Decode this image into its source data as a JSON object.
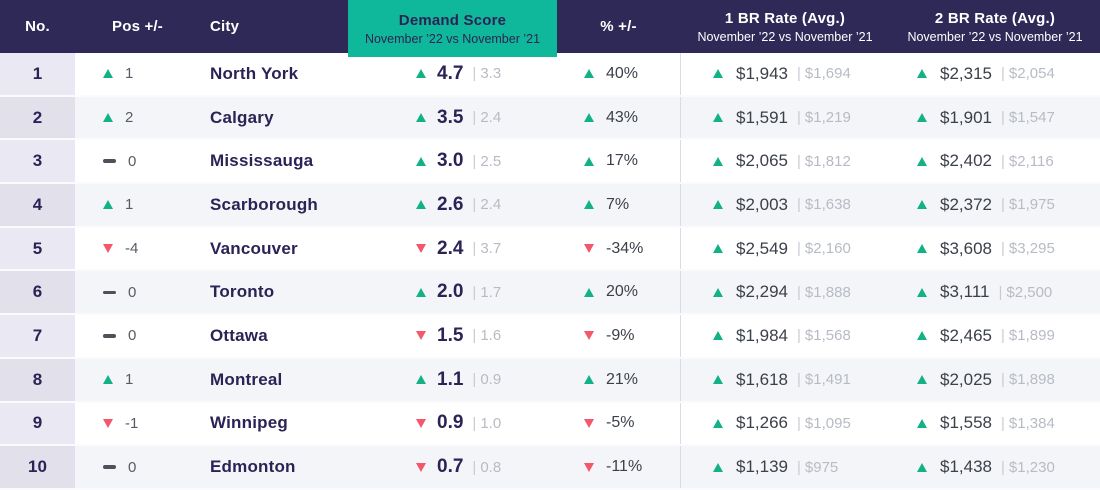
{
  "header": {
    "no": "No.",
    "pos": "Pos +/-",
    "city": "City",
    "demand_title": "Demand Score",
    "demand_sub": "November ’22 vs November ’21",
    "pct": "% +/-",
    "br1_title": "1 BR Rate (Avg.)",
    "br1_sub": "November ’22 vs November ’21",
    "br2_title": "2 BR Rate (Avg.)",
    "br2_sub": "November ’22 vs November ’21"
  },
  "colors": {
    "header_bg": "#2e2957",
    "demand_header_bg": "#10b89b",
    "up_green": "#12b286",
    "down_red": "#f4566a",
    "navy_text": "#2b2355",
    "prev_gray": "#b7bbc4"
  },
  "rows": [
    {
      "no": "1",
      "pos_dir": "up",
      "pos": "1",
      "city": "North York",
      "demand_dir": "up",
      "demand": "4.7",
      "demand_prev": "3.3",
      "pct_dir": "up",
      "pct": "40%",
      "br1_dir": "up",
      "br1": "$1,943",
      "br1_prev": "$1,694",
      "br2_dir": "up",
      "br2": "$2,315",
      "br2_prev": "$2,054"
    },
    {
      "no": "2",
      "pos_dir": "up",
      "pos": "2",
      "city": "Calgary",
      "demand_dir": "up",
      "demand": "3.5",
      "demand_prev": "2.4",
      "pct_dir": "up",
      "pct": "43%",
      "br1_dir": "up",
      "br1": "$1,591",
      "br1_prev": "$1,219",
      "br2_dir": "up",
      "br2": "$1,901",
      "br2_prev": "$1,547"
    },
    {
      "no": "3",
      "pos_dir": "flat",
      "pos": "0",
      "city": "Mississauga",
      "demand_dir": "up",
      "demand": "3.0",
      "demand_prev": "2.5",
      "pct_dir": "up",
      "pct": "17%",
      "br1_dir": "up",
      "br1": "$2,065",
      "br1_prev": "$1,812",
      "br2_dir": "up",
      "br2": "$2,402",
      "br2_prev": "$2,116"
    },
    {
      "no": "4",
      "pos_dir": "up",
      "pos": "1",
      "city": "Scarborough",
      "demand_dir": "up",
      "demand": "2.6",
      "demand_prev": "2.4",
      "pct_dir": "up",
      "pct": "7%",
      "br1_dir": "up",
      "br1": "$2,003",
      "br1_prev": "$1,638",
      "br2_dir": "up",
      "br2": "$2,372",
      "br2_prev": "$1,975"
    },
    {
      "no": "5",
      "pos_dir": "down",
      "pos": "-4",
      "city": "Vancouver",
      "demand_dir": "down",
      "demand": "2.4",
      "demand_prev": "3.7",
      "pct_dir": "down",
      "pct": "-34%",
      "br1_dir": "up",
      "br1": "$2,549",
      "br1_prev": "$2,160",
      "br2_dir": "up",
      "br2": "$3,608",
      "br2_prev": "$3,295"
    },
    {
      "no": "6",
      "pos_dir": "flat",
      "pos": "0",
      "city": "Toronto",
      "demand_dir": "up",
      "demand": "2.0",
      "demand_prev": "1.7",
      "pct_dir": "up",
      "pct": "20%",
      "br1_dir": "up",
      "br1": "$2,294",
      "br1_prev": "$1,888",
      "br2_dir": "up",
      "br2": "$3,111",
      "br2_prev": "$2,500"
    },
    {
      "no": "7",
      "pos_dir": "flat",
      "pos": "0",
      "city": "Ottawa",
      "demand_dir": "down",
      "demand": "1.5",
      "demand_prev": "1.6",
      "pct_dir": "down",
      "pct": "-9%",
      "br1_dir": "up",
      "br1": "$1,984",
      "br1_prev": "$1,568",
      "br2_dir": "up",
      "br2": "$2,465",
      "br2_prev": "$1,899"
    },
    {
      "no": "8",
      "pos_dir": "up",
      "pos": "1",
      "city": "Montreal",
      "demand_dir": "up",
      "demand": "1.1",
      "demand_prev": "0.9",
      "pct_dir": "up",
      "pct": "21%",
      "br1_dir": "up",
      "br1": "$1,618",
      "br1_prev": "$1,491",
      "br2_dir": "up",
      "br2": "$2,025",
      "br2_prev": "$1,898"
    },
    {
      "no": "9",
      "pos_dir": "down",
      "pos": "-1",
      "city": "Winnipeg",
      "demand_dir": "down",
      "demand": "0.9",
      "demand_prev": "1.0",
      "pct_dir": "down",
      "pct": "-5%",
      "br1_dir": "up",
      "br1": "$1,266",
      "br1_prev": "$1,095",
      "br2_dir": "up",
      "br2": "$1,558",
      "br2_prev": "$1,384"
    },
    {
      "no": "10",
      "pos_dir": "flat",
      "pos": "0",
      "city": "Edmonton",
      "demand_dir": "down",
      "demand": "0.7",
      "demand_prev": "0.8",
      "pct_dir": "down",
      "pct": "-11%",
      "br1_dir": "up",
      "br1": "$1,139",
      "br1_prev": "$975",
      "br2_dir": "up",
      "br2": "$1,438",
      "br2_prev": "$1,230"
    }
  ],
  "chart_data": {
    "type": "table",
    "columns": [
      "No.",
      "Pos +/-",
      "City",
      "Demand Score Nov '22",
      "Demand Score Nov '21",
      "% +/-",
      "1 BR Rate (Avg.) Nov '22",
      "1 BR Rate (Avg.) Nov '21",
      "2 BR Rate (Avg.) Nov '22",
      "2 BR Rate (Avg.) Nov '21"
    ],
    "rows": [
      [
        1,
        1,
        "North York",
        4.7,
        3.3,
        40,
        1943,
        1694,
        2315,
        2054
      ],
      [
        2,
        2,
        "Calgary",
        3.5,
        2.4,
        43,
        1591,
        1219,
        1901,
        1547
      ],
      [
        3,
        0,
        "Mississauga",
        3.0,
        2.5,
        17,
        2065,
        1812,
        2402,
        2116
      ],
      [
        4,
        1,
        "Scarborough",
        2.6,
        2.4,
        7,
        2003,
        1638,
        2372,
        1975
      ],
      [
        5,
        -4,
        "Vancouver",
        2.4,
        3.7,
        -34,
        2549,
        2160,
        3608,
        3295
      ],
      [
        6,
        0,
        "Toronto",
        2.0,
        1.7,
        20,
        2294,
        1888,
        3111,
        2500
      ],
      [
        7,
        0,
        "Ottawa",
        1.5,
        1.6,
        -9,
        1984,
        1568,
        2465,
        1899
      ],
      [
        8,
        1,
        "Montreal",
        1.1,
        0.9,
        21,
        1618,
        1491,
        2025,
        1898
      ],
      [
        9,
        -1,
        "Winnipeg",
        0.9,
        1.0,
        -5,
        1266,
        1095,
        1558,
        1384
      ],
      [
        10,
        0,
        "Edmonton",
        0.7,
        0.8,
        -11,
        1139,
        975,
        1438,
        1230
      ]
    ]
  }
}
